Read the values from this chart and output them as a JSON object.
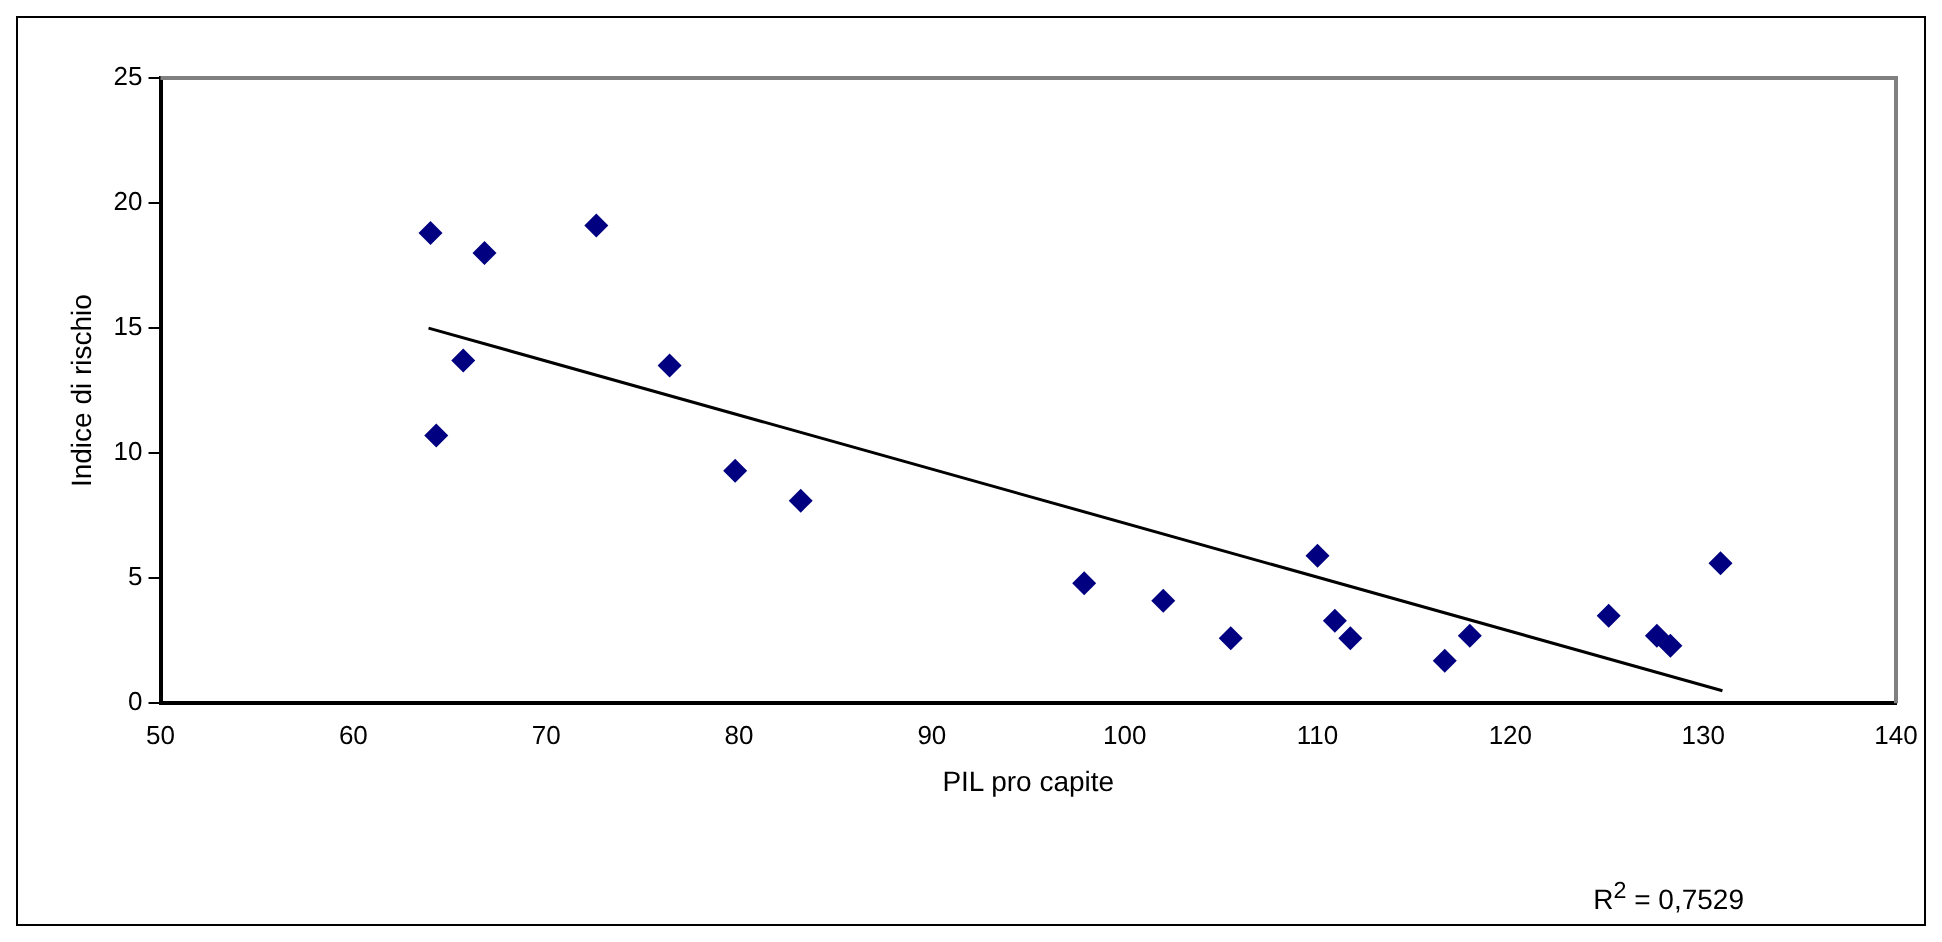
{
  "chart_data": {
    "type": "scatter",
    "xlabel": "PIL pro capite",
    "ylabel": "Indice di rischio",
    "annotations": [
      "R$^{2}$ = 0,7529"
    ],
    "xlim": [
      50,
      140
    ],
    "xticks": [
      50,
      60,
      70,
      80,
      90,
      100,
      110,
      120,
      130,
      140
    ],
    "ylim": [
      0,
      25
    ],
    "yticks": [
      0,
      5,
      10,
      15,
      20,
      25
    ],
    "grid": false,
    "legend": false,
    "marker": "diamond",
    "series": [
      {
        "color": "#000080",
        "x": [
          64,
          64.3,
          65.7,
          66.8,
          72.6,
          76.4,
          79.8,
          83.2,
          97.9,
          102,
          105.5,
          110,
          110.9,
          111.7,
          116.6,
          117.9,
          125.1,
          127.6,
          128.3,
          130.9
        ],
        "values": [
          18.8,
          10.7,
          13.7,
          18.0,
          19.1,
          13.5,
          9.3,
          8.1,
          4.8,
          4.1,
          2.6,
          5.9,
          3.3,
          2.6,
          1.7,
          2.7,
          3.5,
          2.7,
          2.3,
          5.6
        ]
      },
      {
        "type": "line",
        "color": "#000000",
        "x": [
          63.9,
          131
        ],
        "values": [
          15.0,
          0.5
        ],
        "marker": "none",
        "line_style": "solid"
      }
    ]
  }
}
